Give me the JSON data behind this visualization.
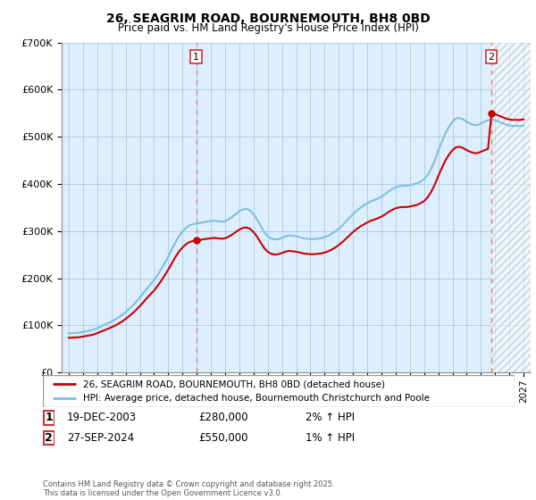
{
  "title": "26, SEAGRIM ROAD, BOURNEMOUTH, BH8 0BD",
  "subtitle": "Price paid vs. HM Land Registry's House Price Index (HPI)",
  "legend_line1": "26, SEAGRIM ROAD, BOURNEMOUTH, BH8 0BD (detached house)",
  "legend_line2": "HPI: Average price, detached house, Bournemouth Christchurch and Poole",
  "transaction1_date": "19-DEC-2003",
  "transaction1_price": "£280,000",
  "transaction1_hpi": "2% ↑ HPI",
  "transaction2_date": "27-SEP-2024",
  "transaction2_price": "£550,000",
  "transaction2_hpi": "1% ↑ HPI",
  "footer": "Contains HM Land Registry data © Crown copyright and database right 2025.\nThis data is licensed under the Open Government Licence v3.0.",
  "transaction1_x": 2003.96,
  "transaction2_x": 2024.74,
  "hpi_color": "#7fbfdf",
  "price_color": "#cc0000",
  "dashed_line_color": "#e08080",
  "chart_bg_color": "#ddeeff",
  "background_color": "#ffffff",
  "grid_color": "#aaccdd",
  "ylim": [
    0,
    700000
  ],
  "xlim": [
    1994.5,
    2027.5
  ],
  "yticks": [
    0,
    100000,
    200000,
    300000,
    400000,
    500000,
    600000,
    700000
  ],
  "xticks": [
    1995,
    1996,
    1997,
    1998,
    1999,
    2000,
    2001,
    2002,
    2003,
    2004,
    2005,
    2006,
    2007,
    2008,
    2009,
    2010,
    2011,
    2012,
    2013,
    2014,
    2015,
    2016,
    2017,
    2018,
    2019,
    2020,
    2021,
    2022,
    2023,
    2024,
    2025,
    2026,
    2027
  ],
  "hpi_years": [
    1995.0,
    1995.25,
    1995.5,
    1995.75,
    1996.0,
    1996.25,
    1996.5,
    1996.75,
    1997.0,
    1997.25,
    1997.5,
    1997.75,
    1998.0,
    1998.25,
    1998.5,
    1998.75,
    1999.0,
    1999.25,
    1999.5,
    1999.75,
    2000.0,
    2000.25,
    2000.5,
    2000.75,
    2001.0,
    2001.25,
    2001.5,
    2001.75,
    2002.0,
    2002.25,
    2002.5,
    2002.75,
    2003.0,
    2003.25,
    2003.5,
    2003.75,
    2004.0,
    2004.25,
    2004.5,
    2004.75,
    2005.0,
    2005.25,
    2005.5,
    2005.75,
    2006.0,
    2006.25,
    2006.5,
    2006.75,
    2007.0,
    2007.25,
    2007.5,
    2007.75,
    2008.0,
    2008.25,
    2008.5,
    2008.75,
    2009.0,
    2009.25,
    2009.5,
    2009.75,
    2010.0,
    2010.25,
    2010.5,
    2010.75,
    2011.0,
    2011.25,
    2011.5,
    2011.75,
    2012.0,
    2012.25,
    2012.5,
    2012.75,
    2013.0,
    2013.25,
    2013.5,
    2013.75,
    2014.0,
    2014.25,
    2014.5,
    2014.75,
    2015.0,
    2015.25,
    2015.5,
    2015.75,
    2016.0,
    2016.25,
    2016.5,
    2016.75,
    2017.0,
    2017.25,
    2017.5,
    2017.75,
    2018.0,
    2018.25,
    2018.5,
    2018.75,
    2019.0,
    2019.25,
    2019.5,
    2019.75,
    2020.0,
    2020.25,
    2020.5,
    2020.75,
    2021.0,
    2021.25,
    2021.5,
    2021.75,
    2022.0,
    2022.25,
    2022.5,
    2022.75,
    2023.0,
    2023.25,
    2023.5,
    2023.75,
    2024.0,
    2024.25,
    2024.5,
    2024.75,
    2025.0,
    2025.25,
    2025.5,
    2025.75,
    2026.0,
    2026.25,
    2026.5,
    2026.75,
    2027.0
  ],
  "hpi_values": [
    83000,
    83500,
    84000,
    84500,
    86000,
    87500,
    89000,
    91000,
    94000,
    97500,
    101000,
    104500,
    108000,
    112000,
    117000,
    122000,
    128000,
    135000,
    142000,
    150000,
    159000,
    168000,
    178000,
    187000,
    196000,
    207000,
    219000,
    232000,
    246000,
    261000,
    276000,
    289000,
    299000,
    307000,
    312000,
    315000,
    316000,
    317000,
    319000,
    320000,
    321000,
    322000,
    321000,
    320000,
    321000,
    325000,
    330000,
    336000,
    342000,
    346000,
    347000,
    344000,
    336000,
    325000,
    311000,
    298000,
    289000,
    284000,
    282000,
    283000,
    286000,
    289000,
    291000,
    290000,
    289000,
    287000,
    285000,
    284000,
    283000,
    283000,
    284000,
    285000,
    287000,
    290000,
    294000,
    299000,
    305000,
    312000,
    320000,
    328000,
    336000,
    343000,
    349000,
    354000,
    359000,
    363000,
    366000,
    369000,
    373000,
    378000,
    384000,
    389000,
    393000,
    395000,
    396000,
    396000,
    397000,
    399000,
    401000,
    405000,
    410000,
    419000,
    432000,
    449000,
    470000,
    489000,
    507000,
    521000,
    532000,
    539000,
    540000,
    537000,
    532000,
    528000,
    525000,
    525000,
    528000,
    532000,
    535000,
    537000,
    535000,
    532000,
    529000,
    526000,
    524000,
    523000,
    523000,
    523000,
    524000
  ],
  "price_years": [
    2003.96,
    2024.74
  ],
  "price_values": [
    280000,
    550000
  ]
}
